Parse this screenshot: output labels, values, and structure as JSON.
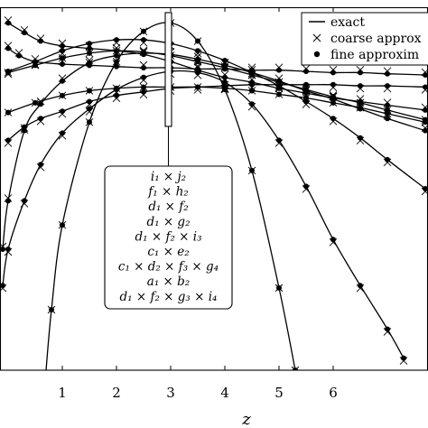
{
  "chart_data": {
    "type": "line",
    "title": "",
    "xlabel": "z",
    "ylabel": "",
    "xlim": [
      -0.15,
      7.75
    ],
    "ylim": [
      -2.0,
      1.0
    ],
    "x_ticks": [
      "1",
      "2",
      "3",
      "4",
      "5",
      "6"
    ],
    "x_tick_values": [
      1,
      2,
      3,
      4,
      5,
      6
    ],
    "grid": false,
    "legend": {
      "placement": "top-right",
      "entries": [
        {
          "marker": "line",
          "label": "exact"
        },
        {
          "marker": "cross",
          "label": "coarse approx"
        },
        {
          "marker": "dot",
          "label": "fine approxim"
        }
      ]
    },
    "annotation": {
      "lines": [
        "i₁ × j₂",
        "f₁ × h₂",
        "d₁ × f₂",
        "d₁ × g₂",
        "d₁ × f₂ × i₃",
        "c₁ × e₂",
        "c₁ × d₂ × f₃ × g₄",
        "a₁ × b₂",
        "d₁ × f₂ × g₃ × i₄"
      ]
    },
    "series": [
      {
        "x": [
          0.0,
          0.2,
          0.5,
          1.0,
          1.5,
          2.0,
          2.5,
          3.0,
          3.5,
          4.0,
          4.5,
          5.0,
          5.5,
          6.0,
          6.5,
          7.0,
          7.7
        ],
        "y": [
          0.66,
          0.6,
          0.55,
          0.53,
          0.52,
          0.51,
          0.5,
          0.5,
          0.49,
          0.49,
          0.48,
          0.48,
          0.47,
          0.46,
          0.46,
          0.45,
          0.44
        ]
      },
      {
        "x": [
          0.0,
          0.5,
          1.0,
          1.5,
          2.0,
          2.5,
          3.0,
          3.5,
          4.0,
          4.5,
          5.0,
          5.5,
          6.0,
          6.5,
          7.0,
          7.7
        ],
        "y": [
          0.46,
          0.52,
          0.58,
          0.62,
          0.64,
          0.63,
          0.6,
          0.55,
          0.5,
          0.44,
          0.38,
          0.32,
          0.26,
          0.21,
          0.15,
          0.07
        ]
      },
      {
        "x": [
          0.0,
          0.5,
          1.0,
          1.5,
          2.0,
          2.5,
          3.0,
          3.5,
          4.0,
          4.5,
          5.0,
          5.5,
          6.0,
          6.5,
          7.0,
          7.7
        ],
        "y": [
          0.47,
          0.55,
          0.64,
          0.7,
          0.73,
          0.73,
          0.7,
          0.64,
          0.56,
          0.46,
          0.35,
          0.22,
          0.08,
          -0.08,
          -0.26,
          -0.5
        ]
      },
      {
        "x": [
          0.0,
          0.3,
          0.6,
          1.0,
          1.5,
          2.0,
          2.5,
          3.0,
          3.5,
          4.0,
          4.5,
          5.0,
          5.5,
          6.0,
          6.5,
          7.0,
          7.7
        ],
        "y": [
          0.87,
          0.79,
          0.72,
          0.68,
          0.66,
          0.64,
          0.61,
          0.55,
          0.48,
          0.42,
          0.38,
          0.33,
          0.29,
          0.25,
          0.22,
          0.19,
          0.15
        ]
      },
      {
        "x": [
          0.0,
          0.5,
          1.0,
          1.5,
          2.0,
          2.5,
          3.0,
          3.5,
          4.0,
          4.5,
          5.0,
          5.5,
          6.0,
          6.5,
          7.0,
          7.7
        ],
        "y": [
          0.13,
          0.21,
          0.27,
          0.31,
          0.33,
          0.34,
          0.34,
          0.34,
          0.33,
          0.31,
          0.28,
          0.25,
          0.21,
          0.17,
          0.12,
          0.05
        ]
      },
      {
        "x": [
          0.0,
          0.3,
          0.6,
          1.0,
          1.5,
          2.0,
          2.5,
          3.0,
          3.5,
          4.0,
          4.5,
          5.0,
          5.5,
          6.0,
          6.5,
          7.0,
          7.7
        ],
        "y": [
          -0.1,
          0.01,
          0.08,
          0.14,
          0.22,
          0.27,
          0.3,
          0.33,
          0.34,
          0.35,
          0.36,
          0.36,
          0.36,
          0.36,
          0.35,
          0.35,
          0.34
        ]
      },
      {
        "x": [
          -0.1,
          0.0,
          0.3,
          0.6,
          1.0,
          1.5,
          2.0,
          2.5,
          3.0,
          3.5,
          4.0,
          4.5,
          5.0,
          5.5,
          6.0,
          6.5,
          7.0,
          7.7
        ],
        "y": [
          -1.0,
          -0.6,
          -0.02,
          0.2,
          0.39,
          0.54,
          0.6,
          0.62,
          0.61,
          0.57,
          0.52,
          0.46,
          0.39,
          0.31,
          0.24,
          0.16,
          0.08,
          -0.02
        ]
      },
      {
        "x": [
          0.7,
          0.8,
          1.0,
          1.5,
          2.0,
          2.5,
          3.0,
          3.5,
          4.0,
          4.5,
          5.0,
          5.3
        ],
        "y": [
          -2.0,
          -1.5,
          -0.8,
          0.05,
          0.55,
          0.8,
          0.87,
          0.72,
          0.32,
          -0.35,
          -1.32,
          -2.0
        ]
      },
      {
        "x": [
          -0.1,
          0.0,
          0.3,
          0.6,
          1.0,
          1.5,
          2.0,
          2.5,
          3.0,
          3.5,
          4.0,
          4.5,
          5.0,
          5.5,
          6.0,
          6.5,
          7.0,
          7.3
        ],
        "y": [
          -1.3,
          -1.0,
          -0.6,
          -0.3,
          -0.04,
          0.16,
          0.32,
          0.42,
          0.47,
          0.46,
          0.38,
          0.2,
          -0.1,
          -0.48,
          -0.92,
          -1.3,
          -1.66,
          -1.9
        ]
      }
    ]
  }
}
